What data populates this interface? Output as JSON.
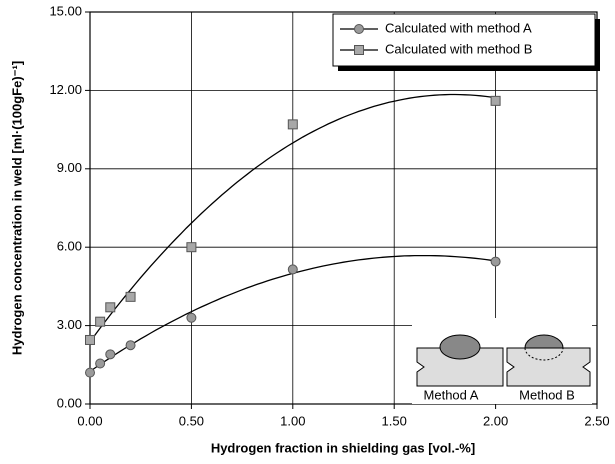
{
  "chart_data": {
    "type": "scatter",
    "xlabel": "Hydrogen fraction in shielding gas [vol.-%]",
    "ylabel": "Hydrogen concentration in weld [ml·(100gFe)⁻¹]",
    "xlim": [
      0,
      2.5
    ],
    "ylim": [
      0,
      15
    ],
    "xticks": [
      {
        "value": 0,
        "label": "0.00"
      },
      {
        "value": 0.5,
        "label": "0.50"
      },
      {
        "value": 1,
        "label": "1.00"
      },
      {
        "value": 1.5,
        "label": "1.50"
      },
      {
        "value": 2,
        "label": "2.00"
      },
      {
        "value": 2.5,
        "label": "2.50"
      }
    ],
    "yticks": [
      {
        "value": 0,
        "label": "0.00"
      },
      {
        "value": 3,
        "label": "3.00"
      },
      {
        "value": 6,
        "label": "6.00"
      },
      {
        "value": 9,
        "label": "9.00"
      },
      {
        "value": 12,
        "label": "12.00"
      },
      {
        "value": 15,
        "label": "15.00"
      }
    ],
    "grid": true,
    "legend": "upper right",
    "series": [
      {
        "name": "Calculated with method A",
        "color": "#9a9a9a",
        "marker": "circle",
        "x": [
          0,
          0.05,
          0.1,
          0.2,
          0.5,
          1,
          2
        ],
        "values": [
          1.2,
          1.55,
          1.9,
          2.25,
          3.3,
          5.15,
          5.45
        ]
      },
      {
        "name": "Calculated with method B",
        "color": "#a8a8a8",
        "marker": "square",
        "x": [
          0,
          0.05,
          0.1,
          0.2,
          0.5,
          1,
          2
        ],
        "values": [
          2.45,
          3.15,
          3.7,
          4.1,
          6.0,
          10.7,
          11.6
        ]
      }
    ],
    "annotations": [
      "Method A",
      "Method B"
    ]
  }
}
